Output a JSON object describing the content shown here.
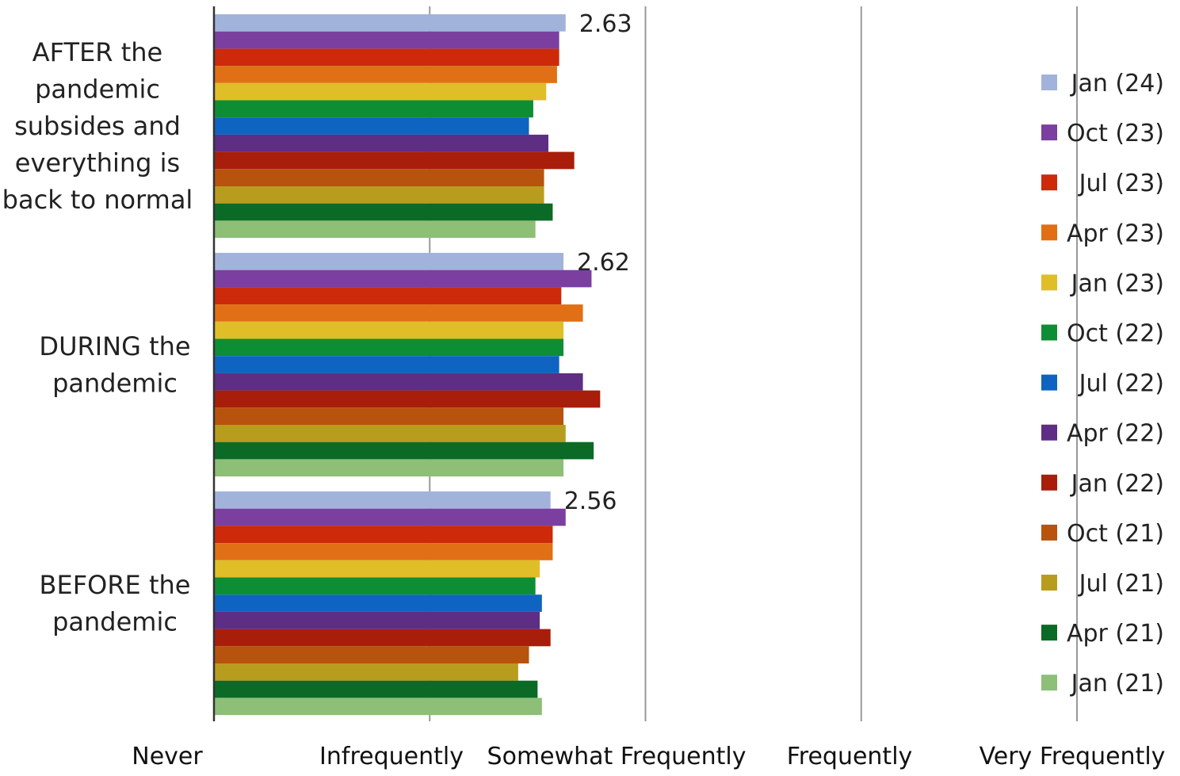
{
  "chart_data": {
    "type": "bar",
    "orientation": "horizontal",
    "categories": [
      "AFTER the pandemic subsides and everything is back to normal",
      "DURING the pandemic",
      "BEFORE the pandemic"
    ],
    "category_lines": [
      [
        "AFTER the",
        "pandemic",
        "subsides and",
        "everything is",
        "back to normal"
      ],
      [
        "DURING the",
        "pandemic"
      ],
      [
        "BEFORE the",
        "pandemic"
      ]
    ],
    "x_ticks": [
      {
        "value": 1,
        "label": "Never"
      },
      {
        "value": 2,
        "label": "Infrequently"
      },
      {
        "value": 3,
        "label": "Somewhat  Frequently"
      },
      {
        "value": 4,
        "label": "Frequently"
      },
      {
        "value": 5,
        "label": "Very Frequently"
      }
    ],
    "xlim": [
      1,
      5
    ],
    "grid": true,
    "legend_position": "right",
    "series": [
      {
        "name": "Jan (24)",
        "color": "#A2B3DB",
        "values": [
          2.63,
          2.62,
          2.56
        ]
      },
      {
        "name": "Oct (23)",
        "color": "#7B3FA0",
        "values": [
          2.6,
          2.75,
          2.63
        ]
      },
      {
        "name": "Jul (23)",
        "color": "#CC2A0A",
        "values": [
          2.6,
          2.61,
          2.57
        ]
      },
      {
        "name": "Apr (23)",
        "color": "#E16F16",
        "values": [
          2.59,
          2.71,
          2.57
        ]
      },
      {
        "name": "Jan (23)",
        "color": "#E0BE28",
        "values": [
          2.54,
          2.62,
          2.51
        ]
      },
      {
        "name": "Oct (22)",
        "color": "#0E8E34",
        "values": [
          2.48,
          2.62,
          2.49
        ]
      },
      {
        "name": "Jul (22)",
        "color": "#0E64C0",
        "values": [
          2.46,
          2.6,
          2.52
        ]
      },
      {
        "name": "Apr (22)",
        "color": "#5E2D84",
        "values": [
          2.55,
          2.71,
          2.51
        ]
      },
      {
        "name": "Jan (22)",
        "color": "#A81E0B",
        "values": [
          2.67,
          2.79,
          2.56
        ]
      },
      {
        "name": "Oct (21)",
        "color": "#B8530E",
        "values": [
          2.53,
          2.62,
          2.46
        ]
      },
      {
        "name": "Jul (21)",
        "color": "#B89C1E",
        "values": [
          2.53,
          2.63,
          2.41
        ]
      },
      {
        "name": "Apr (21)",
        "color": "#0B6B26",
        "values": [
          2.57,
          2.76,
          2.5
        ]
      },
      {
        "name": "Jan (21)",
        "color": "#8DBF77",
        "values": [
          2.49,
          2.62,
          2.52
        ]
      }
    ],
    "data_labels": [
      {
        "category_index": 0,
        "series_index": 0,
        "text": "2.63"
      },
      {
        "category_index": 1,
        "series_index": 0,
        "text": "2.62"
      },
      {
        "category_index": 2,
        "series_index": 0,
        "text": "2.56"
      }
    ]
  }
}
